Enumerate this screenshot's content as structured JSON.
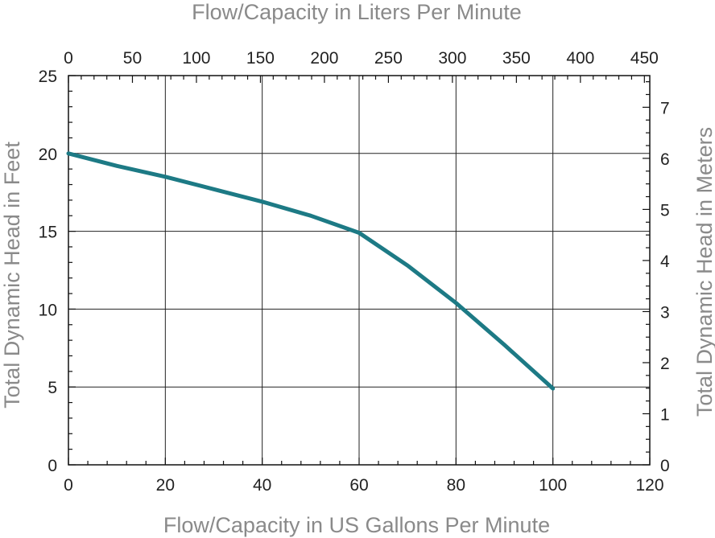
{
  "chart_data": {
    "type": "line",
    "title": "",
    "xlabel": "Flow/Capacity in US Gallons Per Minute",
    "ylabel": "Total Dynamic Head in Feet",
    "x2label": "Flow/Capacity in Liters Per Minute",
    "y2label": "Total Dynamic Head in Meters",
    "xlim": [
      0,
      120
    ],
    "ylim": [
      0,
      25
    ],
    "x2lim": [
      0,
      454.2
    ],
    "y2lim": [
      0,
      7.62
    ],
    "x_ticks": [
      "0",
      "20",
      "40",
      "60",
      "80",
      "100",
      "120"
    ],
    "y_ticks": [
      "0",
      "5",
      "10",
      "15",
      "20",
      "25"
    ],
    "x2_ticks": [
      "0",
      "50",
      "100",
      "150",
      "200",
      "250",
      "300",
      "350",
      "400",
      "450"
    ],
    "y2_ticks": [
      "0",
      "1",
      "2",
      "3",
      "4",
      "5",
      "6",
      "7"
    ],
    "grid": true,
    "line_color": "#1d7a85",
    "series": [
      {
        "x": [
          0,
          10,
          20,
          30,
          40,
          50,
          60,
          70,
          80,
          90,
          100
        ],
        "y": [
          20,
          19.2,
          18.5,
          17.7,
          16.9,
          16.0,
          14.9,
          12.8,
          10.4,
          7.7,
          4.9
        ]
      }
    ]
  }
}
